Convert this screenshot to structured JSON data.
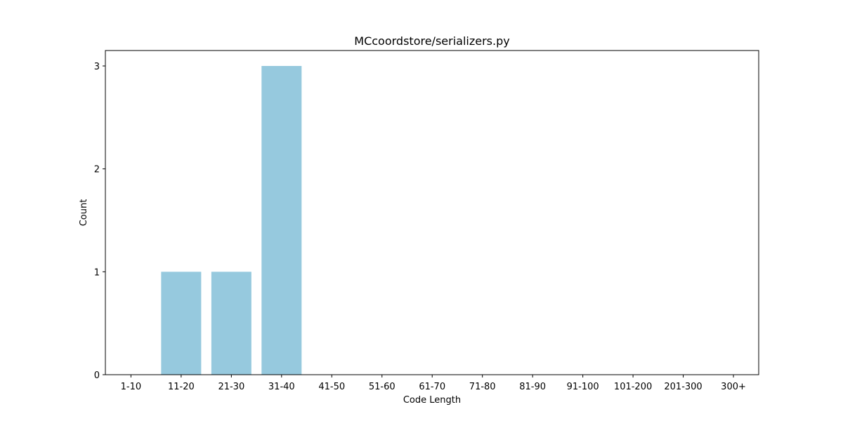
{
  "chart_data": {
    "type": "bar",
    "title": "MCcoordstore/serializers.py",
    "xlabel": "Code Length",
    "ylabel": "Count",
    "categories": [
      "1-10",
      "11-20",
      "21-30",
      "31-40",
      "41-50",
      "51-60",
      "61-70",
      "71-80",
      "81-90",
      "91-100",
      "101-200",
      "201-300",
      "300+"
    ],
    "values": [
      0,
      1,
      1,
      3,
      0,
      0,
      0,
      0,
      0,
      0,
      0,
      0,
      0
    ],
    "ylim": [
      0,
      3.15
    ],
    "yticks": [
      0,
      1,
      2,
      3
    ],
    "bar_color": "#96c9de",
    "grid": false,
    "legend": "none"
  }
}
